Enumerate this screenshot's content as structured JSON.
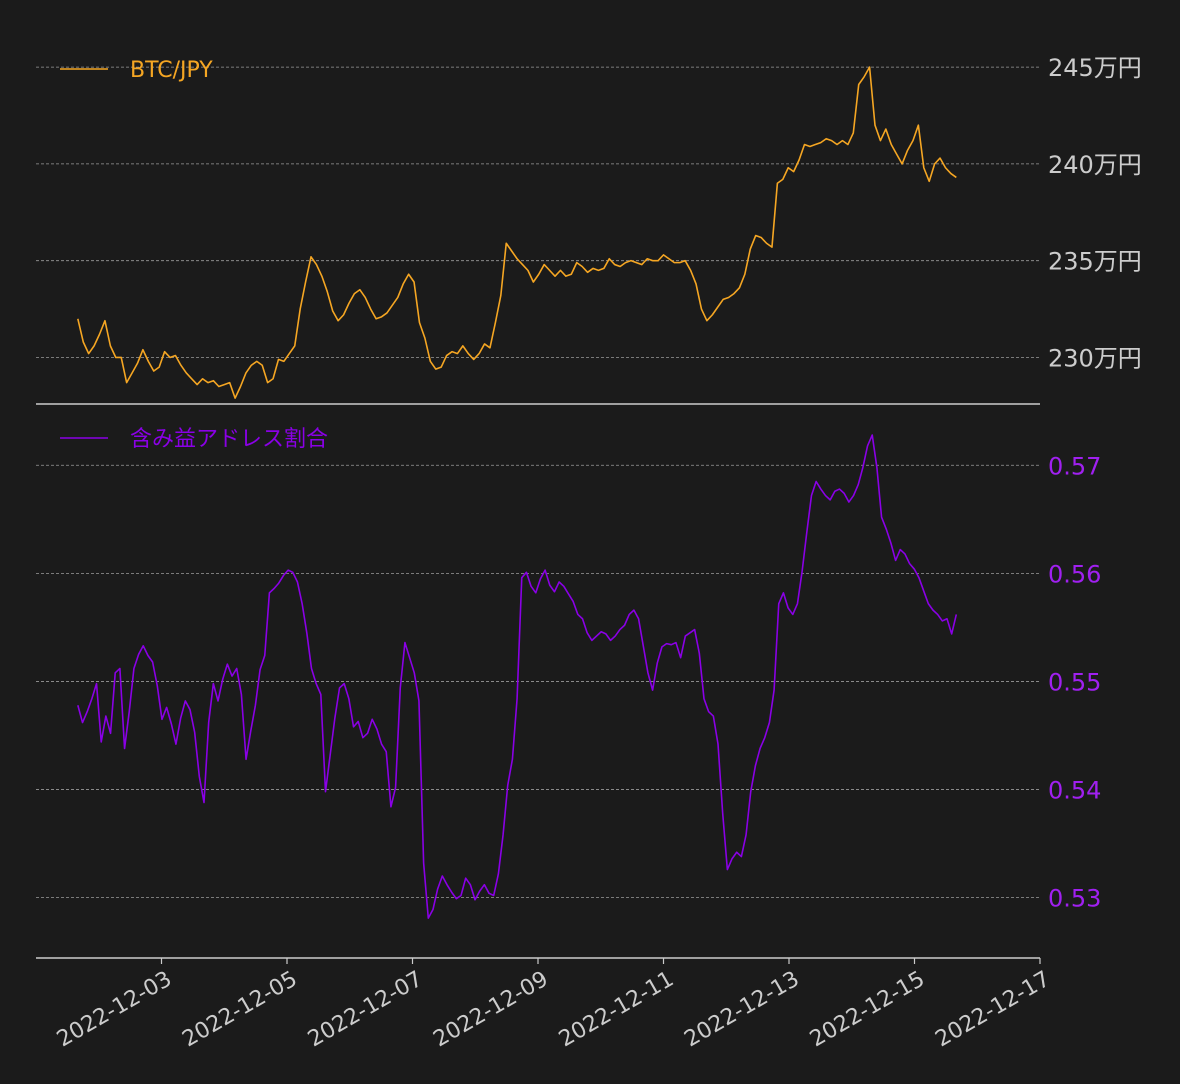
{
  "colors": {
    "background": "#1b1b1b",
    "price_line": "#f5a623",
    "ratio_line": "#8a00e6",
    "axis_line": "#cccccc",
    "grid_line": "#bbbbbb",
    "date_label": "#cccccc",
    "price_tick": "#cccccc",
    "ratio_tick": "#a020f0"
  },
  "chart_data": [
    {
      "type": "line",
      "x_unit": "date",
      "x_start": "2022-12-01 16:00",
      "x_end": "2022-12-15 16:00",
      "xlim": [
        "2022-12-01 00:00",
        "2022-12-17 00:00"
      ],
      "ylim": [
        2277000,
        2464000
      ],
      "yticks": [
        2300000,
        2350000,
        2400000,
        2450000
      ],
      "ytick_labels": [
        "230万円",
        "235万円",
        "240万円",
        "245万円"
      ],
      "grid": true,
      "legend_position": "top-left",
      "series": [
        {
          "name": "BTC/JPY",
          "color": "#f5a623",
          "values": [
            2320000,
            2308000,
            2302000,
            2306000,
            2312000,
            2319000,
            2306000,
            2300000,
            2300000,
            2287000,
            2292000,
            2297000,
            2304000,
            2298000,
            2293000,
            2295000,
            2303000,
            2300000,
            2301000,
            2296000,
            2292000,
            2289000,
            2286000,
            2289000,
            2287000,
            2288000,
            2285000,
            2286000,
            2287000,
            2279000,
            2285000,
            2292000,
            2296000,
            2298000,
            2296000,
            2287000,
            2289000,
            2299000,
            2298000,
            2302000,
            2306000,
            2325000,
            2339000,
            2352000,
            2348000,
            2342000,
            2334000,
            2324000,
            2319000,
            2322000,
            2328000,
            2333000,
            2335000,
            2331000,
            2325000,
            2320000,
            2321000,
            2323000,
            2327000,
            2331000,
            2338000,
            2343000,
            2339000,
            2318000,
            2310000,
            2298000,
            2294000,
            2295000,
            2301000,
            2303000,
            2302000,
            2306000,
            2302000,
            2299000,
            2302000,
            2307000,
            2305000,
            2318000,
            2332000,
            2359000,
            2355000,
            2351000,
            2348000,
            2345000,
            2339000,
            2343000,
            2348000,
            2345000,
            2342000,
            2345000,
            2342000,
            2343000,
            2349000,
            2347000,
            2344000,
            2346000,
            2345000,
            2346000,
            2351000,
            2348000,
            2347000,
            2349000,
            2350000,
            2349000,
            2348000,
            2351000,
            2350000,
            2350000,
            2353000,
            2351000,
            2349000,
            2349000,
            2350000,
            2345000,
            2338000,
            2325000,
            2319000,
            2322000,
            2326000,
            2330000,
            2331000,
            2333000,
            2336000,
            2343000,
            2356000,
            2363000,
            2362000,
            2359000,
            2357000,
            2390000,
            2392000,
            2398000,
            2396000,
            2402000,
            2410000,
            2409000,
            2410000,
            2411000,
            2413000,
            2412000,
            2410000,
            2412000,
            2410000,
            2416000,
            2441000,
            2445000,
            2450000,
            2420000,
            2412000,
            2418000,
            2410000,
            2405000,
            2400000,
            2407000,
            2412000,
            2420000,
            2398000,
            2391000,
            2400000,
            2403000,
            2398000,
            2395000,
            2393000
          ]
        }
      ]
    },
    {
      "type": "line",
      "x_unit": "date",
      "x_start": "2022-12-01 16:00",
      "x_end": "2022-12-15 16:00",
      "xlim": [
        "2022-12-01 00:00",
        "2022-12-17 00:00"
      ],
      "xticks": [
        "2022-12-03",
        "2022-12-05",
        "2022-12-07",
        "2022-12-09",
        "2022-12-11",
        "2022-12-13",
        "2022-12-15",
        "2022-12-17"
      ],
      "ylim": [
        0.5246,
        0.5753
      ],
      "yticks": [
        0.53,
        0.54,
        0.55,
        0.56,
        0.57
      ],
      "ytick_labels": [
        "0.53",
        "0.54",
        "0.55",
        "0.56",
        "0.57"
      ],
      "grid": true,
      "legend_position": "top-left",
      "series": [
        {
          "name": "含み益アドレス割合",
          "color": "#8a00e6",
          "values": [
            0.5478,
            0.5462,
            0.5472,
            0.5484,
            0.5498,
            0.5444,
            0.5468,
            0.5452,
            0.5508,
            0.5512,
            0.5438,
            0.5472,
            0.5512,
            0.5525,
            0.5533,
            0.5524,
            0.5518,
            0.5496,
            0.5465,
            0.5476,
            0.5461,
            0.5442,
            0.5466,
            0.5482,
            0.5474,
            0.5453,
            0.5412,
            0.5388,
            0.5462,
            0.5498,
            0.5482,
            0.5502,
            0.5516,
            0.5505,
            0.5512,
            0.5488,
            0.5428,
            0.5454,
            0.5478,
            0.5511,
            0.5524,
            0.5582,
            0.5586,
            0.5591,
            0.5598,
            0.5603,
            0.5601,
            0.5592,
            0.5572,
            0.5545,
            0.5512,
            0.5498,
            0.5488,
            0.5398,
            0.5432,
            0.5466,
            0.5494,
            0.5498,
            0.5484,
            0.5458,
            0.5463,
            0.5448,
            0.5452,
            0.5465,
            0.5456,
            0.5442,
            0.5435,
            0.5384,
            0.5402,
            0.5494,
            0.5536,
            0.5522,
            0.5508,
            0.5482,
            0.5332,
            0.5281,
            0.5289,
            0.5308,
            0.532,
            0.5312,
            0.5305,
            0.5299,
            0.5302,
            0.5318,
            0.5312,
            0.5298,
            0.5306,
            0.5312,
            0.5304,
            0.5302,
            0.5322,
            0.5358,
            0.5404,
            0.5428,
            0.5484,
            0.5596,
            0.5601,
            0.5588,
            0.5582,
            0.5595,
            0.5603,
            0.5589,
            0.5583,
            0.5592,
            0.5588,
            0.5581,
            0.5574,
            0.5562,
            0.5558,
            0.5545,
            0.5538,
            0.5542,
            0.5546,
            0.5544,
            0.5538,
            0.5542,
            0.5548,
            0.5552,
            0.5562,
            0.5566,
            0.5558,
            0.5533,
            0.5508,
            0.5492,
            0.5517,
            0.5532,
            0.5535,
            0.5534,
            0.5536,
            0.5522,
            0.5542,
            0.5545,
            0.5548,
            0.5526,
            0.5484,
            0.5472,
            0.5468,
            0.5442,
            0.5378,
            0.5326,
            0.5336,
            0.5342,
            0.5338,
            0.5358,
            0.5398,
            0.5422,
            0.5438,
            0.5448,
            0.5462,
            0.5492,
            0.5572,
            0.5582,
            0.5568,
            0.5562,
            0.5572,
            0.5602,
            0.5638,
            0.5672,
            0.5685,
            0.5678,
            0.5672,
            0.5668,
            0.5676,
            0.5678,
            0.5674,
            0.5666,
            0.5672,
            0.5682,
            0.5698,
            0.5718,
            0.5728,
            0.5698,
            0.5652,
            0.5641,
            0.5628,
            0.5612,
            0.5622,
            0.5618,
            0.5609,
            0.5604,
            0.5596,
            0.5584,
            0.5572,
            0.5566,
            0.5562,
            0.5556,
            0.5558,
            0.5544,
            0.5562
          ]
        }
      ]
    }
  ]
}
